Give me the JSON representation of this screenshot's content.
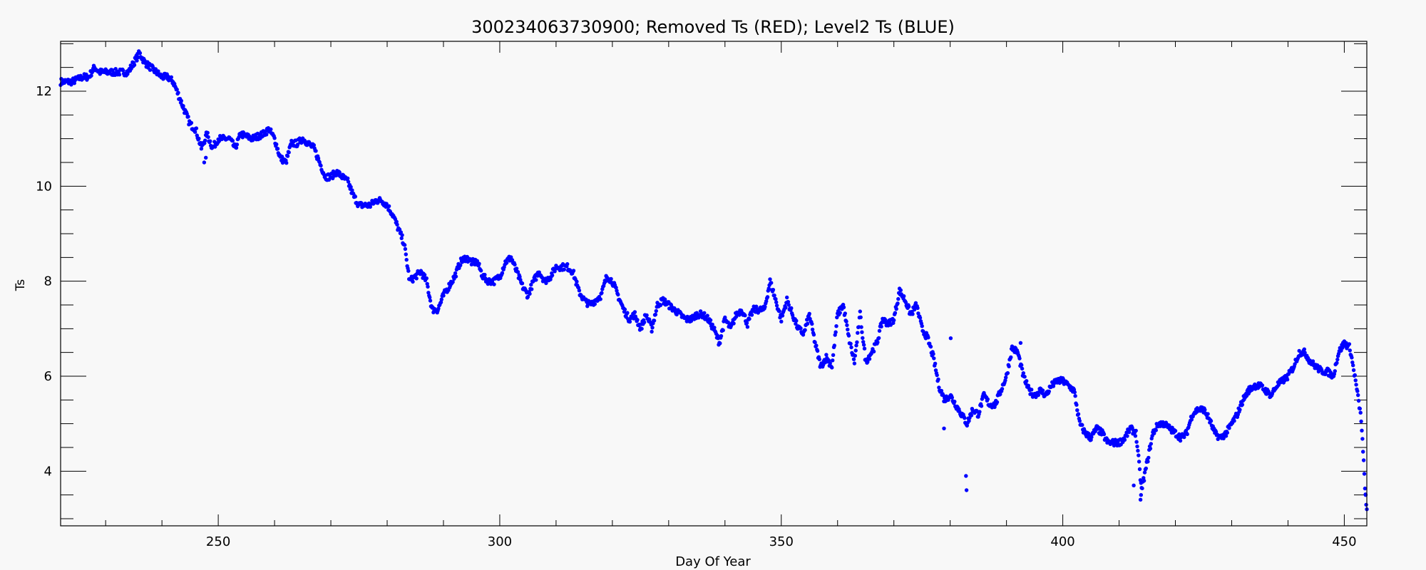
{
  "chart_data": {
    "type": "scatter",
    "title": "300234063730900; Removed Ts (RED); Level2 Ts (BLUE)",
    "xlabel": "Day Of Year",
    "ylabel": "Ts",
    "xlim": [
      222,
      454
    ],
    "ylim": [
      2.85,
      13.05
    ],
    "x_ticks": [
      250,
      300,
      350,
      400,
      450
    ],
    "y_ticks": [
      4,
      6,
      8,
      10,
      12
    ],
    "x_minor_step": 10,
    "y_minor_step": 0.5,
    "grid": false,
    "series": [
      {
        "color": "#0000ff",
        "profile": [
          [
            222,
            12.2
          ],
          [
            224,
            12.2
          ],
          [
            226,
            12.3
          ],
          [
            227,
            12.3
          ],
          [
            228,
            12.5
          ],
          [
            229,
            12.4
          ],
          [
            231,
            12.4
          ],
          [
            233,
            12.4
          ],
          [
            234,
            12.4
          ],
          [
            235,
            12.6
          ],
          [
            236,
            12.8
          ],
          [
            237,
            12.6
          ],
          [
            238,
            12.5
          ],
          [
            239,
            12.4
          ],
          [
            240,
            12.3
          ],
          [
            241,
            12.3
          ],
          [
            242,
            12.2
          ],
          [
            243,
            11.9
          ],
          [
            244,
            11.6
          ],
          [
            245,
            11.3
          ],
          [
            246,
            11.2
          ],
          [
            247,
            10.8
          ],
          [
            248,
            11.1
          ],
          [
            249,
            10.8
          ],
          [
            250,
            11.0
          ],
          [
            252,
            11.0
          ],
          [
            253,
            10.8
          ],
          [
            254,
            11.1
          ],
          [
            256,
            11.0
          ],
          [
            258,
            11.1
          ],
          [
            259,
            11.2
          ],
          [
            260,
            11.0
          ],
          [
            261,
            10.6
          ],
          [
            262,
            10.5
          ],
          [
            263,
            10.9
          ],
          [
            264,
            10.9
          ],
          [
            265,
            11.0
          ],
          [
            266,
            10.9
          ],
          [
            267,
            10.8
          ],
          [
            268,
            10.5
          ],
          [
            269,
            10.2
          ],
          [
            270,
            10.2
          ],
          [
            271,
            10.3
          ],
          [
            272,
            10.2
          ],
          [
            273,
            10.1
          ],
          [
            274,
            9.8
          ],
          [
            275,
            9.6
          ],
          [
            276,
            9.6
          ],
          [
            277,
            9.6
          ],
          [
            278,
            9.7
          ],
          [
            279,
            9.7
          ],
          [
            280,
            9.6
          ],
          [
            281,
            9.4
          ],
          [
            282,
            9.1
          ],
          [
            283,
            8.8
          ],
          [
            284,
            8.0
          ],
          [
            285,
            8.1
          ],
          [
            286,
            8.2
          ],
          [
            287,
            8.0
          ],
          [
            288,
            7.4
          ],
          [
            289,
            7.4
          ],
          [
            290,
            7.7
          ],
          [
            291,
            7.9
          ],
          [
            292,
            8.1
          ],
          [
            293,
            8.4
          ],
          [
            294,
            8.5
          ],
          [
            295,
            8.4
          ],
          [
            296,
            8.4
          ],
          [
            297,
            8.1
          ],
          [
            298,
            8.0
          ],
          [
            299,
            8.0
          ],
          [
            300,
            8.1
          ],
          [
            301,
            8.4
          ],
          [
            302,
            8.5
          ],
          [
            303,
            8.2
          ],
          [
            304,
            7.9
          ],
          [
            305,
            7.7
          ],
          [
            306,
            8.0
          ],
          [
            307,
            8.2
          ],
          [
            308,
            8.0
          ],
          [
            309,
            8.1
          ],
          [
            310,
            8.3
          ],
          [
            312,
            8.3
          ],
          [
            313,
            8.2
          ],
          [
            314,
            7.8
          ],
          [
            315,
            7.6
          ],
          [
            316,
            7.5
          ],
          [
            317,
            7.6
          ],
          [
            318,
            7.7
          ],
          [
            319,
            8.1
          ],
          [
            320,
            8.0
          ],
          [
            321,
            7.7
          ],
          [
            322,
            7.4
          ],
          [
            323,
            7.2
          ],
          [
            324,
            7.3
          ],
          [
            325,
            7.0
          ],
          [
            326,
            7.3
          ],
          [
            327,
            7.0
          ],
          [
            328,
            7.5
          ],
          [
            329,
            7.6
          ],
          [
            330,
            7.5
          ],
          [
            331,
            7.4
          ],
          [
            332,
            7.3
          ],
          [
            333,
            7.2
          ],
          [
            334,
            7.2
          ],
          [
            335,
            7.3
          ],
          [
            336,
            7.3
          ],
          [
            337,
            7.2
          ],
          [
            338,
            7.0
          ],
          [
            339,
            6.7
          ],
          [
            340,
            7.2
          ],
          [
            341,
            7.0
          ],
          [
            342,
            7.3
          ],
          [
            343,
            7.4
          ],
          [
            344,
            7.1
          ],
          [
            345,
            7.4
          ],
          [
            346,
            7.4
          ],
          [
            347,
            7.4
          ],
          [
            348,
            8.0
          ],
          [
            349,
            7.6
          ],
          [
            350,
            7.2
          ],
          [
            351,
            7.6
          ],
          [
            352,
            7.3
          ],
          [
            353,
            7.0
          ],
          [
            354,
            6.9
          ],
          [
            355,
            7.3
          ],
          [
            356,
            6.7
          ],
          [
            357,
            6.2
          ],
          [
            358,
            6.4
          ],
          [
            359,
            6.2
          ],
          [
            360,
            7.3
          ],
          [
            361,
            7.5
          ],
          [
            362,
            6.8
          ],
          [
            363,
            6.3
          ],
          [
            364,
            7.3
          ],
          [
            365,
            6.3
          ],
          [
            366,
            6.5
          ],
          [
            367,
            6.7
          ],
          [
            368,
            7.2
          ],
          [
            369,
            7.1
          ],
          [
            370,
            7.2
          ],
          [
            371,
            7.8
          ],
          [
            372,
            7.6
          ],
          [
            373,
            7.3
          ],
          [
            374,
            7.5
          ],
          [
            375,
            7.0
          ],
          [
            376,
            6.8
          ],
          [
            377,
            6.4
          ],
          [
            378,
            5.8
          ],
          [
            379,
            5.5
          ],
          [
            380,
            5.6
          ],
          [
            381,
            5.4
          ],
          [
            382,
            5.2
          ],
          [
            383,
            5.0
          ],
          [
            384,
            5.3
          ],
          [
            385,
            5.2
          ],
          [
            386,
            5.6
          ],
          [
            387,
            5.4
          ],
          [
            388,
            5.4
          ],
          [
            389,
            5.7
          ],
          [
            390,
            6.0
          ],
          [
            391,
            6.6
          ],
          [
            392,
            6.5
          ],
          [
            393,
            6.0
          ],
          [
            394,
            5.7
          ],
          [
            395,
            5.6
          ],
          [
            396,
            5.7
          ],
          [
            397,
            5.6
          ],
          [
            398,
            5.8
          ],
          [
            399,
            5.9
          ],
          [
            400,
            5.9
          ],
          [
            401,
            5.8
          ],
          [
            402,
            5.7
          ],
          [
            403,
            5.0
          ],
          [
            404,
            4.8
          ],
          [
            405,
            4.7
          ],
          [
            406,
            4.9
          ],
          [
            407,
            4.8
          ],
          [
            408,
            4.6
          ],
          [
            409,
            4.6
          ],
          [
            410,
            4.6
          ],
          [
            411,
            4.7
          ],
          [
            412,
            4.9
          ],
          [
            413,
            4.8
          ],
          [
            414,
            3.6
          ],
          [
            415,
            4.2
          ],
          [
            416,
            4.8
          ],
          [
            417,
            5.0
          ],
          [
            418,
            5.0
          ],
          [
            419,
            4.9
          ],
          [
            420,
            4.8
          ],
          [
            421,
            4.7
          ],
          [
            422,
            4.8
          ],
          [
            423,
            5.2
          ],
          [
            424,
            5.3
          ],
          [
            425,
            5.3
          ],
          [
            426,
            5.1
          ],
          [
            427,
            4.8
          ],
          [
            428,
            4.7
          ],
          [
            429,
            4.8
          ],
          [
            430,
            5.0
          ],
          [
            431,
            5.2
          ],
          [
            432,
            5.5
          ],
          [
            433,
            5.7
          ],
          [
            434,
            5.8
          ],
          [
            435,
            5.8
          ],
          [
            436,
            5.7
          ],
          [
            437,
            5.6
          ],
          [
            438,
            5.8
          ],
          [
            439,
            5.9
          ],
          [
            440,
            6.0
          ],
          [
            441,
            6.2
          ],
          [
            442,
            6.5
          ],
          [
            443,
            6.5
          ],
          [
            444,
            6.3
          ],
          [
            445,
            6.2
          ],
          [
            446,
            6.1
          ],
          [
            447,
            6.1
          ],
          [
            448,
            6.0
          ],
          [
            449,
            6.5
          ],
          [
            450,
            6.7
          ],
          [
            451,
            6.6
          ],
          [
            452,
            5.9
          ],
          [
            453,
            5.1
          ],
          [
            454,
            3.0
          ]
        ],
        "outliers": [
          [
            247.5,
            10.5
          ],
          [
            247.8,
            10.6
          ],
          [
            382.9,
            3.6
          ],
          [
            382.8,
            3.9
          ],
          [
            412.6,
            3.7
          ],
          [
            413.8,
            3.4
          ],
          [
            413.9,
            3.5
          ],
          [
            454,
            3.2
          ],
          [
            453.8,
            3.5
          ],
          [
            380.1,
            6.8
          ],
          [
            378.9,
            4.9
          ],
          [
            392.5,
            6.7
          ]
        ]
      }
    ]
  }
}
